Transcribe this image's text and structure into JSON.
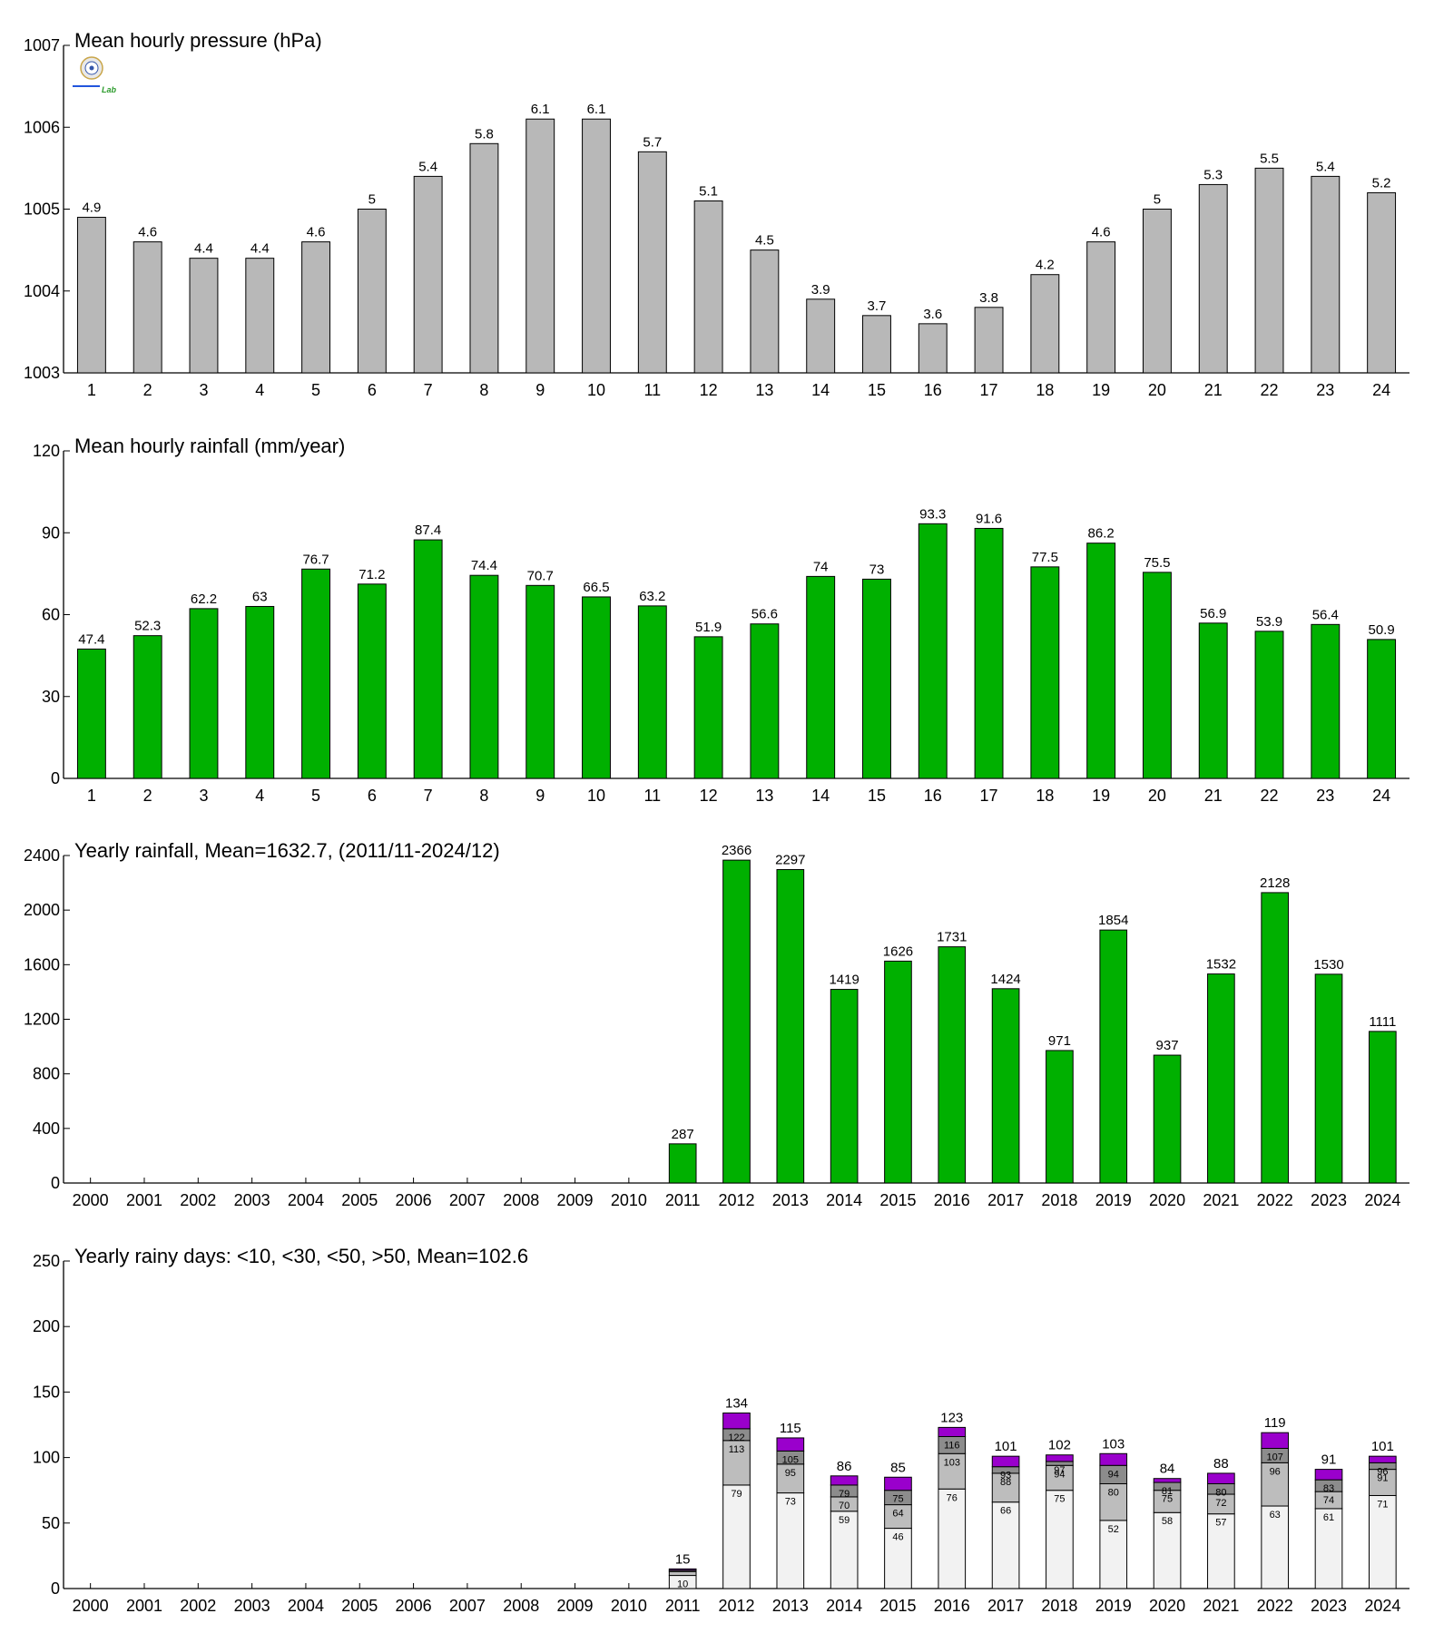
{
  "logo": {
    "name": "Lab logo",
    "text": "Lab"
  },
  "chart_data": [
    {
      "type": "bar",
      "title": "Mean hourly pressure (hPa)",
      "categories": [
        "1",
        "2",
        "3",
        "4",
        "5",
        "6",
        "7",
        "8",
        "9",
        "10",
        "11",
        "12",
        "13",
        "14",
        "15",
        "16",
        "17",
        "18",
        "19",
        "20",
        "21",
        "22",
        "23",
        "24"
      ],
      "values": [
        1004.9,
        1004.6,
        1004.4,
        1004.4,
        1004.6,
        1005.0,
        1005.4,
        1005.8,
        1006.1,
        1006.1,
        1005.7,
        1005.1,
        1004.5,
        1003.9,
        1003.7,
        1003.6,
        1003.8,
        1004.2,
        1004.6,
        1005.0,
        1005.3,
        1005.5,
        1005.4,
        1005.2
      ],
      "value_labels": [
        "4.9",
        "4.6",
        "4.4",
        "4.4",
        "4.6",
        "5",
        "5.4",
        "5.8",
        "6.1",
        "6.1",
        "5.7",
        "5.1",
        "4.5",
        "3.9",
        "3.7",
        "3.6",
        "3.8",
        "4.2",
        "4.6",
        "5",
        "5.3",
        "5.5",
        "5.4",
        "5.2"
      ],
      "ylim": [
        1003,
        1007
      ],
      "yticks": [
        1003,
        1004,
        1005,
        1006,
        1007
      ],
      "color": "#b8b8b8"
    },
    {
      "type": "bar",
      "title": "Mean hourly rainfall (mm/year)",
      "categories": [
        "1",
        "2",
        "3",
        "4",
        "5",
        "6",
        "7",
        "8",
        "9",
        "10",
        "11",
        "12",
        "13",
        "14",
        "15",
        "16",
        "17",
        "18",
        "19",
        "20",
        "21",
        "22",
        "23",
        "24"
      ],
      "values": [
        47.4,
        52.3,
        62.2,
        63,
        76.7,
        71.2,
        87.4,
        74.4,
        70.7,
        66.5,
        63.2,
        51.9,
        56.6,
        74,
        73,
        93.3,
        91.6,
        77.5,
        86.2,
        75.5,
        56.9,
        53.9,
        56.4,
        50.9
      ],
      "value_labels": [
        "47.4",
        "52.3",
        "62.2",
        "63",
        "76.7",
        "71.2",
        "87.4",
        "74.4",
        "70.7",
        "66.5",
        "63.2",
        "51.9",
        "56.6",
        "74",
        "73",
        "93.3",
        "91.6",
        "77.5",
        "86.2",
        "75.5",
        "56.9",
        "53.9",
        "56.4",
        "50.9"
      ],
      "ylim": [
        0,
        120
      ],
      "yticks": [
        0,
        30,
        60,
        90,
        120
      ],
      "color": "#00b000"
    },
    {
      "type": "bar",
      "title": "Yearly rainfall, Mean=1632.7, (2011/11-2024/12)",
      "categories": [
        "2000",
        "2001",
        "2002",
        "2003",
        "2004",
        "2005",
        "2006",
        "2007",
        "2008",
        "2009",
        "2010",
        "2011",
        "2012",
        "2013",
        "2014",
        "2015",
        "2016",
        "2017",
        "2018",
        "2019",
        "2020",
        "2021",
        "2022",
        "2023",
        "2024"
      ],
      "values": [
        null,
        null,
        null,
        null,
        null,
        null,
        null,
        null,
        null,
        null,
        null,
        287,
        2366,
        2297,
        1419,
        1626,
        1731,
        1424,
        971,
        1854,
        937,
        1532,
        2128,
        1530,
        1111
      ],
      "value_labels": [
        "",
        "",
        "",
        "",
        "",
        "",
        "",
        "",
        "",
        "",
        "",
        "287",
        "2366",
        "2297",
        "1419",
        "1626",
        "1731",
        "1424",
        "971",
        "1854",
        "937",
        "1532",
        "2128",
        "1530",
        "1111"
      ],
      "ylim": [
        0,
        2400
      ],
      "yticks": [
        0,
        400,
        800,
        1200,
        1600,
        2000,
        2400
      ],
      "color": "#00b000"
    },
    {
      "type": "stacked-bar",
      "title": "Yearly rainy days: <10, <30, <50, >50, Mean=102.6",
      "categories": [
        "2000",
        "2001",
        "2002",
        "2003",
        "2004",
        "2005",
        "2006",
        "2007",
        "2008",
        "2009",
        "2010",
        "2011",
        "2012",
        "2013",
        "2014",
        "2015",
        "2016",
        "2017",
        "2018",
        "2019",
        "2020",
        "2021",
        "2022",
        "2023",
        "2024"
      ],
      "cumulative": [
        null,
        null,
        null,
        null,
        null,
        null,
        null,
        null,
        null,
        null,
        null,
        [
          10,
          13,
          14,
          15
        ],
        [
          79,
          113,
          122,
          134
        ],
        [
          73,
          95,
          105,
          115
        ],
        [
          59,
          70,
          79,
          86
        ],
        [
          46,
          64,
          75,
          85
        ],
        [
          76,
          103,
          116,
          123
        ],
        [
          66,
          88,
          93,
          101
        ],
        [
          75,
          94,
          97,
          102
        ],
        [
          52,
          80,
          94,
          103
        ],
        [
          58,
          75,
          81,
          84
        ],
        [
          57,
          72,
          80,
          88
        ],
        [
          63,
          96,
          107,
          119
        ],
        [
          61,
          74,
          83,
          91
        ],
        [
          71,
          91,
          96,
          101
        ]
      ],
      "series": [
        {
          "name": "<10",
          "color": "#f2f2f2"
        },
        {
          "name": "<30",
          "color": "#bdbdbd"
        },
        {
          "name": "<50",
          "color": "#8c8c8c"
        },
        {
          "name": ">50",
          "color": "#9a00cc"
        }
      ],
      "ylim": [
        0,
        250
      ],
      "yticks": [
        0,
        50,
        100,
        150,
        200,
        250
      ]
    }
  ]
}
